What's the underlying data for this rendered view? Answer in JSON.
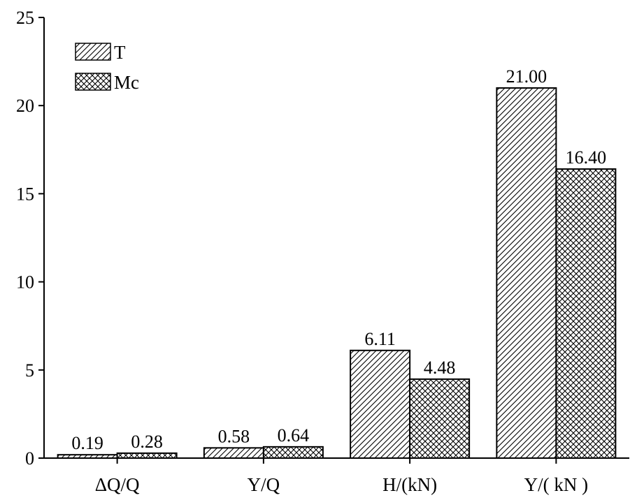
{
  "chart_data": {
    "type": "bar",
    "title": "",
    "xlabel": "",
    "ylabel": "",
    "categories": [
      "ΔQ/Q",
      "Y/Q",
      "H/(kN)",
      "Y/( kN )"
    ],
    "series": [
      {
        "name": "T",
        "pattern": "diagonal-hatch",
        "values": [
          0.19,
          0.58,
          6.11,
          21.0
        ],
        "labels": [
          "0.19",
          "0.58",
          "6.11",
          "21.00"
        ]
      },
      {
        "name": "Mc",
        "pattern": "cross-hatch",
        "values": [
          0.28,
          0.64,
          4.48,
          16.4
        ],
        "labels": [
          "0.28",
          "0.64",
          "4.48",
          "16.40"
        ]
      }
    ],
    "ylim": [
      0,
      25
    ],
    "yticks": [
      0,
      5,
      10,
      15,
      20,
      25
    ],
    "ytick_labels": [
      "0",
      "5",
      "10",
      "15",
      "20",
      "25"
    ],
    "grid": false,
    "legend_position": "top-left",
    "colors": {
      "bar_fill": "#ffffff",
      "hatch": "#000000",
      "axis": "#000000"
    }
  }
}
